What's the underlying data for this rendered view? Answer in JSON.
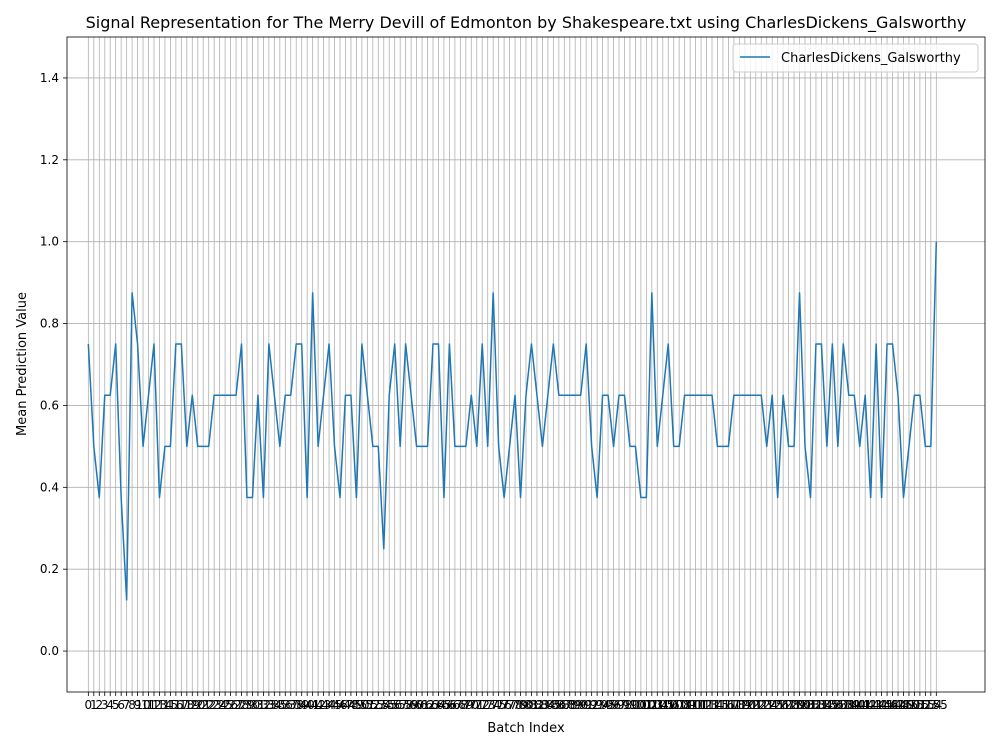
{
  "chart_data": {
    "type": "line",
    "title": "Signal Representation for The Merry Devill of Edmonton by Shakespeare.txt using CharlesDickens_Galsworthy",
    "xlabel": "Batch Index",
    "ylabel": "Mean Prediction Value",
    "ylim": [
      -0.1,
      1.5
    ],
    "xlim": [
      -3.9,
      163.9
    ],
    "yticks": [
      0.0,
      0.2,
      0.4,
      0.6,
      0.8,
      1.0,
      1.2,
      1.4
    ],
    "grid": true,
    "legend": "top-right",
    "series": [
      {
        "name": "CharlesDickens_Galsworthy",
        "color": "#1f77b4",
        "values": [
          0.75,
          0.5,
          0.375,
          0.625,
          0.625,
          0.75,
          0.375,
          0.125,
          0.875,
          0.75,
          0.5,
          0.625,
          0.75,
          0.375,
          0.5,
          0.5,
          0.75,
          0.75,
          0.5,
          0.625,
          0.5,
          0.5,
          0.5,
          0.625,
          0.625,
          0.625,
          0.625,
          0.625,
          0.75,
          0.375,
          0.375,
          0.625,
          0.375,
          0.75,
          0.625,
          0.5,
          0.625,
          0.625,
          0.75,
          0.75,
          0.375,
          0.875,
          0.5,
          0.625,
          0.75,
          0.5,
          0.375,
          0.625,
          0.625,
          0.375,
          0.75,
          0.625,
          0.5,
          0.5,
          0.25,
          0.625,
          0.75,
          0.5,
          0.75,
          0.625,
          0.5,
          0.5,
          0.5,
          0.75,
          0.75,
          0.375,
          0.75,
          0.5,
          0.5,
          0.5,
          0.625,
          0.5,
          0.75,
          0.5,
          0.875,
          0.5,
          0.375,
          0.5,
          0.625,
          0.375,
          0.625,
          0.75,
          0.625,
          0.5,
          0.625,
          0.75,
          0.625,
          0.625,
          0.625,
          0.625,
          0.625,
          0.75,
          0.5,
          0.375,
          0.625,
          0.625,
          0.5,
          0.625,
          0.625,
          0.5,
          0.5,
          0.375,
          0.375,
          0.875,
          0.5,
          0.625,
          0.75,
          0.5,
          0.5,
          0.625,
          0.625,
          0.625,
          0.625,
          0.625,
          0.625,
          0.5,
          0.5,
          0.5,
          0.625,
          0.625,
          0.625,
          0.625,
          0.625,
          0.625,
          0.5,
          0.625,
          0.375,
          0.625,
          0.5,
          0.5,
          0.875,
          0.5,
          0.375,
          0.75,
          0.75,
          0.5,
          0.75,
          0.5,
          0.75,
          0.625,
          0.625,
          0.5,
          0.625,
          0.375,
          0.75,
          0.375,
          0.75,
          0.75,
          0.625,
          0.375,
          0.5,
          0.625,
          0.625,
          0.5,
          0.5,
          1.0
        ]
      }
    ]
  }
}
